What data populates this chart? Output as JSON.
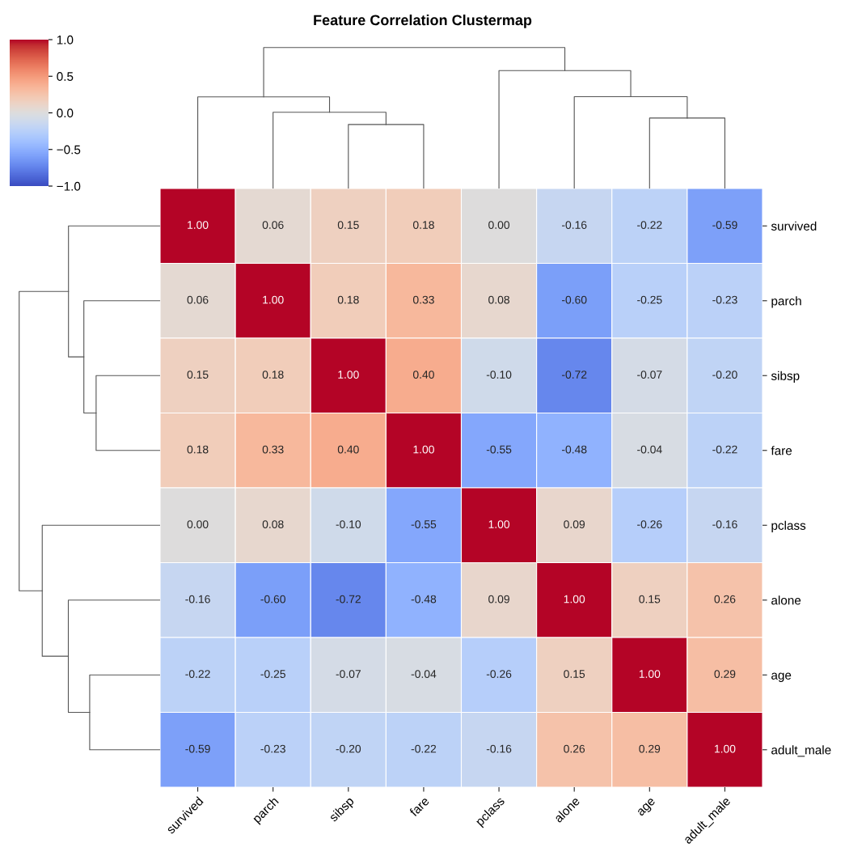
{
  "chart_data": {
    "type": "heatmap",
    "title": "Feature Correlation Clustermap",
    "categories": [
      "survived",
      "parch",
      "sibsp",
      "fare",
      "pclass",
      "alone",
      "age",
      "adult_male"
    ],
    "y_categories": [
      "survived",
      "parch",
      "sibsp",
      "fare",
      "pclass",
      "alone",
      "age",
      "adult_male"
    ],
    "cells": [
      [
        1.0,
        0.06,
        0.15,
        0.18,
        0.0,
        -0.16,
        -0.22,
        -0.59
      ],
      [
        0.06,
        1.0,
        0.18,
        0.33,
        0.08,
        -0.6,
        -0.25,
        -0.23
      ],
      [
        0.15,
        0.18,
        1.0,
        0.4,
        -0.1,
        -0.72,
        -0.07,
        -0.2
      ],
      [
        0.18,
        0.33,
        0.4,
        1.0,
        -0.55,
        -0.48,
        -0.04,
        -0.22
      ],
      [
        0.0,
        0.08,
        -0.1,
        -0.55,
        1.0,
        0.09,
        -0.26,
        -0.16
      ],
      [
        -0.16,
        -0.6,
        -0.72,
        -0.48,
        0.09,
        1.0,
        0.15,
        0.26
      ],
      [
        -0.22,
        -0.25,
        -0.07,
        -0.04,
        -0.26,
        0.15,
        1.0,
        0.29
      ],
      [
        -0.59,
        -0.23,
        -0.2,
        -0.22,
        -0.16,
        0.26,
        0.29,
        1.0
      ]
    ],
    "cell_labels": [
      [
        "1.00",
        "0.06",
        "0.15",
        "0.18",
        "0.00",
        "-0.16",
        "-0.22",
        "-0.59"
      ],
      [
        "0.06",
        "1.00",
        "0.18",
        "0.33",
        "0.08",
        "-0.60",
        "-0.25",
        "-0.23"
      ],
      [
        "0.15",
        "0.18",
        "1.00",
        "0.40",
        "-0.10",
        "-0.72",
        "-0.07",
        "-0.20"
      ],
      [
        "0.18",
        "0.33",
        "0.40",
        "1.00",
        "-0.55",
        "-0.48",
        "-0.04",
        "-0.22"
      ],
      [
        "0.00",
        "0.08",
        "-0.10",
        "-0.55",
        "1.00",
        "0.09",
        "-0.26",
        "-0.16"
      ],
      [
        "-0.16",
        "-0.60",
        "-0.72",
        "-0.48",
        "0.09",
        "1.00",
        "0.15",
        "0.26"
      ],
      [
        "-0.22",
        "-0.25",
        "-0.07",
        "-0.04",
        "-0.26",
        "0.15",
        "1.00",
        "0.29"
      ],
      [
        "-0.59",
        "-0.23",
        "-0.20",
        "-0.22",
        "-0.16",
        "0.26",
        "0.29",
        "1.00"
      ]
    ],
    "clim": [
      -1.0,
      1.0
    ],
    "cticks": [
      {
        "value": -1.0,
        "label": "−1.0"
      },
      {
        "value": -0.5,
        "label": "−0.5"
      },
      {
        "value": 0.0,
        "label": "0.0"
      },
      {
        "value": 0.5,
        "label": "0.5"
      },
      {
        "value": 1.0,
        "label": "1.0"
      }
    ]
  }
}
